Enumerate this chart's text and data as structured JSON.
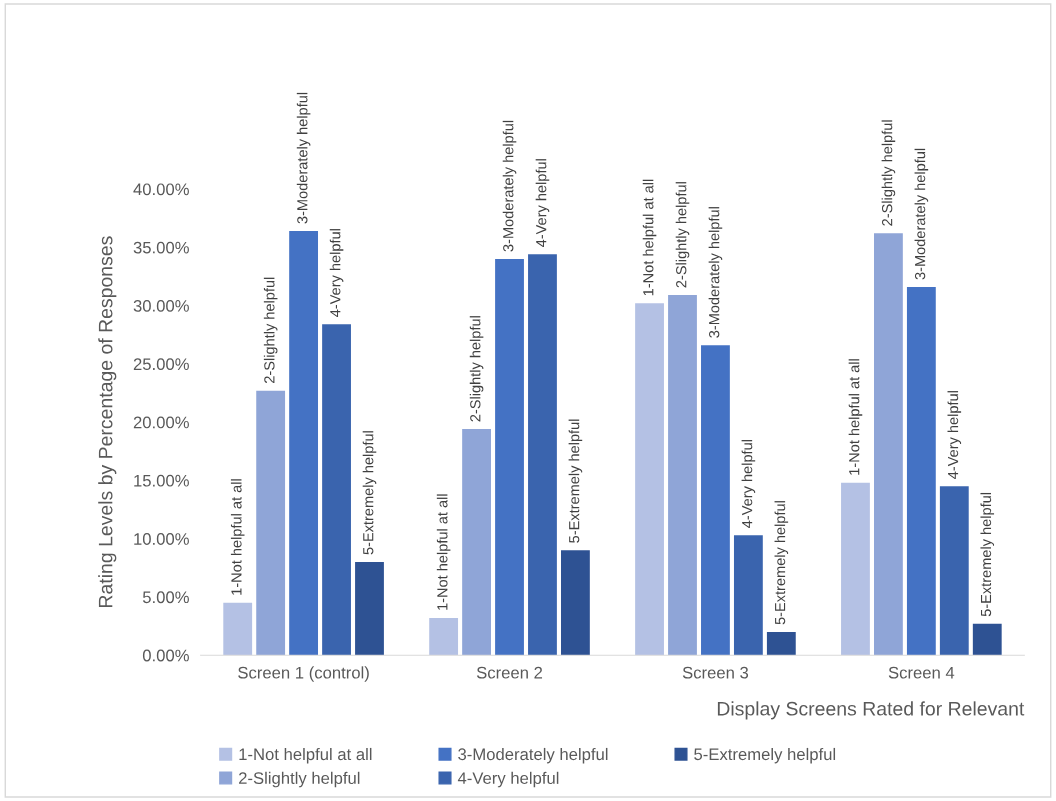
{
  "chart_data": {
    "type": "bar",
    "categories": [
      "Screen 1 (control)",
      "Screen 2",
      "Screen 3",
      "Screen 4"
    ],
    "xlabel": "Display Screens Rated for Relevant",
    "ylabel": "Rating Levels by Percentage of Responses",
    "ylim": [
      0,
      40
    ],
    "yticks": [
      {
        "value": 0,
        "label": "0.00%"
      },
      {
        "value": 5,
        "label": "5.00%"
      },
      {
        "value": 10,
        "label": "10.00%"
      },
      {
        "value": 15,
        "label": "15.00%"
      },
      {
        "value": 20,
        "label": "20.00%"
      },
      {
        "value": 25,
        "label": "25.00%"
      },
      {
        "value": 30,
        "label": "30.00%"
      },
      {
        "value": 35,
        "label": "35.00%"
      },
      {
        "value": 40,
        "label": "40.00%"
      }
    ],
    "grid": false,
    "legend": "bottom",
    "series": [
      {
        "name": "1-Not helpful at all",
        "color": "#b4c1e4",
        "values": [
          4.5,
          3.2,
          30.2,
          14.8
        ]
      },
      {
        "name": "2-Slightly helpful",
        "color": "#8fa5d7",
        "values": [
          22.7,
          19.4,
          30.9,
          36.2
        ]
      },
      {
        "name": "3-Moderately helpful",
        "color": "#4472c4",
        "values": [
          36.4,
          34.0,
          26.6,
          31.6
        ]
      },
      {
        "name": "4-Very helpful",
        "color": "#3a64ae",
        "values": [
          28.4,
          34.4,
          10.3,
          14.5
        ]
      },
      {
        "name": "5-Extremely helpful",
        "color": "#2e5293",
        "values": [
          8.0,
          9.0,
          2.0,
          2.7
        ]
      }
    ],
    "annotations": [
      "1-Not helpful at all",
      "2-Slightly helpful",
      "3-Moderately helpful",
      "4-Very helpful",
      "5-Extremely helpful",
      "1-Not helpful at all",
      "2-Slightly helpful",
      "3-Moderately helpful",
      "4-Very helpful",
      "5-Extremely helpful",
      "1-Not helpful at all",
      "2-Slightly helpful",
      "3-Moderately helpful",
      "4-Very helpful",
      "5-Extremely helpful",
      "1-Not helpful at all",
      "2-Slightly helpful",
      "3-Moderately helpful",
      "4-Very helpful",
      "5-Extremely helpful"
    ]
  }
}
